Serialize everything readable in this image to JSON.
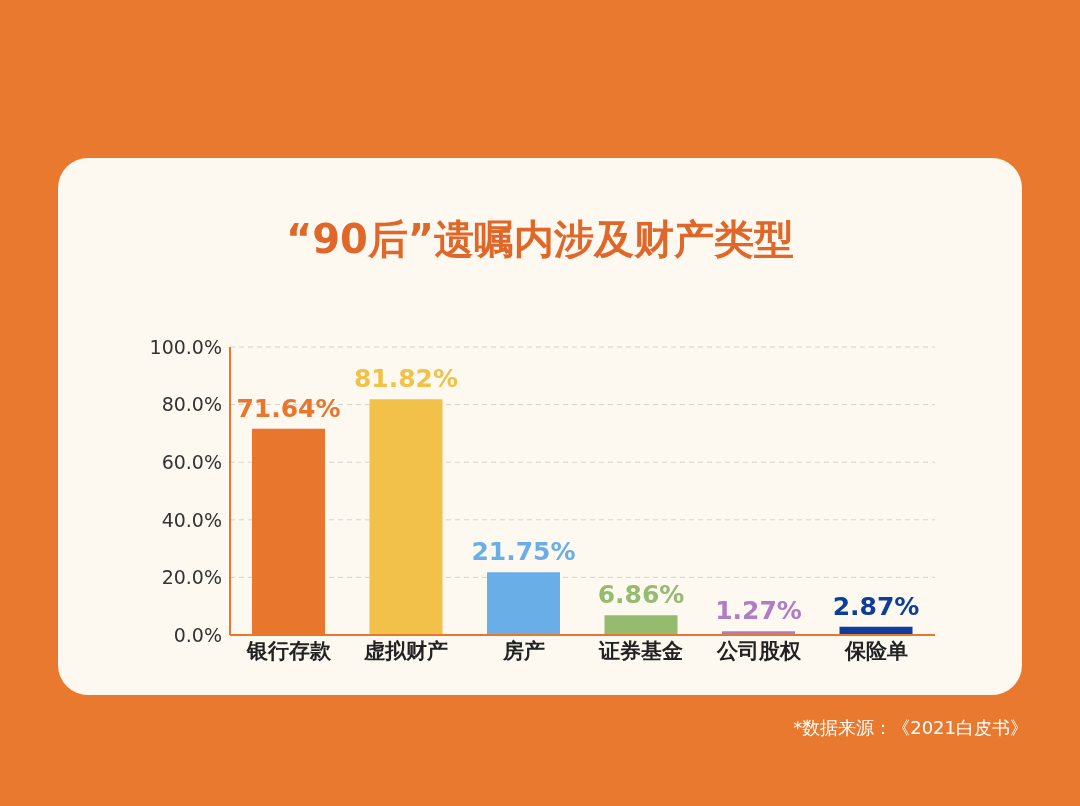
{
  "chart_data": {
    "type": "bar",
    "title": "“90后”遗嘱内涉及财产类型",
    "categories": [
      "银行存款",
      "虚拟财产",
      "房产",
      "证券基金",
      "公司股权",
      "保险单"
    ],
    "values": [
      71.64,
      81.82,
      21.75,
      6.86,
      1.27,
      2.87
    ],
    "colors": [
      "#e8762d",
      "#f2c14a",
      "#6aaee8",
      "#95bb6e",
      "#b07cc6",
      "#0d3f9a"
    ],
    "value_labels": [
      "71.64%",
      "81.82%",
      "21.75%",
      "6.86%",
      "1.27%",
      "2.87%"
    ],
    "ylim": [
      0,
      100
    ],
    "yticks": [
      {
        "value": 0,
        "label": "0.0%"
      },
      {
        "value": 20,
        "label": "20.0%"
      },
      {
        "value": 40,
        "label": "40.0%"
      },
      {
        "value": 60,
        "label": "60.0%"
      },
      {
        "value": 80,
        "label": "80.0%"
      },
      {
        "value": 100,
        "label": "100.0%"
      }
    ],
    "grid": "y",
    "annotations": [
      "*数据来源：《2021白皮书》"
    ]
  }
}
